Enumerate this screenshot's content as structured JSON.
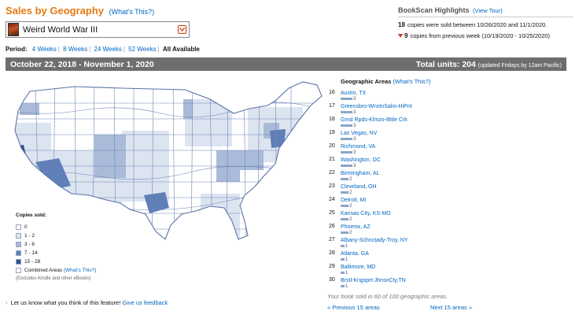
{
  "header": {
    "title": "Sales by Geography",
    "whats_this": "(What's This?)"
  },
  "book": {
    "title": "Weird World War III"
  },
  "period": {
    "label": "Period:",
    "options": [
      "4 Weeks",
      "8 Weeks",
      "24 Weeks",
      "52 Weeks",
      "All Available"
    ],
    "selected": "All Available"
  },
  "highlights": {
    "title": "BookScan Highlights",
    "tour": "(View Tour)",
    "sold_count": "18",
    "sold_text": "copies were sold between 10/26/2020 and 11/1/2020.",
    "change_count": "9",
    "change_text": "copies from previous week (10/19/2020 - 10/25/2020)"
  },
  "summary": {
    "date_range": "October 22, 2018 - November 1, 2020",
    "total_label": "Total units: 204",
    "update_note": "(updated Fridays by 12am Pacific)"
  },
  "legend": {
    "title": "Copies sold:",
    "items": [
      {
        "label": "0",
        "color": "#ffffff"
      },
      {
        "label": "1 - 2",
        "color": "#dce4f0"
      },
      {
        "label": "3 - 6",
        "color": "#a9bbd8"
      },
      {
        "label": "7 - 14",
        "color": "#5f7fb8"
      },
      {
        "label": "15 - 28",
        "color": "#2f4f94"
      },
      {
        "label": "Combined Areas",
        "color": "#ffffff"
      }
    ],
    "whats_this": "(What's This?)",
    "note": "(Excludes Kindle and other eBooks)"
  },
  "geo": {
    "title": "Geographic Areas",
    "whats_this": "(What's This?)",
    "rows": [
      {
        "rank": "16",
        "name": "Austin, TX",
        "count": 3
      },
      {
        "rank": "17",
        "name": "Greensbro-WnstnSalm-HiPnt",
        "count": 3
      },
      {
        "rank": "18",
        "name": "Grnd Rpds-Klmzo-Bttle Crk",
        "count": 3
      },
      {
        "rank": "19",
        "name": "Las Vegas, NV",
        "count": 3
      },
      {
        "rank": "20",
        "name": "Richmond, VA",
        "count": 3
      },
      {
        "rank": "21",
        "name": "Washington, DC",
        "count": 3
      },
      {
        "rank": "22",
        "name": "Birmingham, AL",
        "count": 2
      },
      {
        "rank": "23",
        "name": "Cleveland, OH",
        "count": 2
      },
      {
        "rank": "24",
        "name": "Detroit, MI",
        "count": 2
      },
      {
        "rank": "25",
        "name": "Kansas City, KS-MO",
        "count": 2
      },
      {
        "rank": "26",
        "name": "Phoenix, AZ",
        "count": 2
      },
      {
        "rank": "27",
        "name": "Albany-Schnctady-Troy, NY",
        "count": 1
      },
      {
        "rank": "28",
        "name": "Atlanta, GA",
        "count": 1
      },
      {
        "rank": "29",
        "name": "Baltimore, MD",
        "count": 1
      },
      {
        "rank": "30",
        "name": "Brstl-Kngsprt-JhnsnCty,TN",
        "count": 1
      }
    ],
    "coverage": "Your book sold in 60 of 100 geographic areas.",
    "prev": "« Previous 15 areas",
    "next": "Next 15 areas »"
  },
  "feedback": {
    "text": "Let us know what you think of this feature!",
    "link": "Give us feedback"
  },
  "colors": {
    "accent": "#e47911",
    "link": "#0066c0",
    "bar": "#6e6e6e",
    "state_outline": "#6f86b6"
  }
}
